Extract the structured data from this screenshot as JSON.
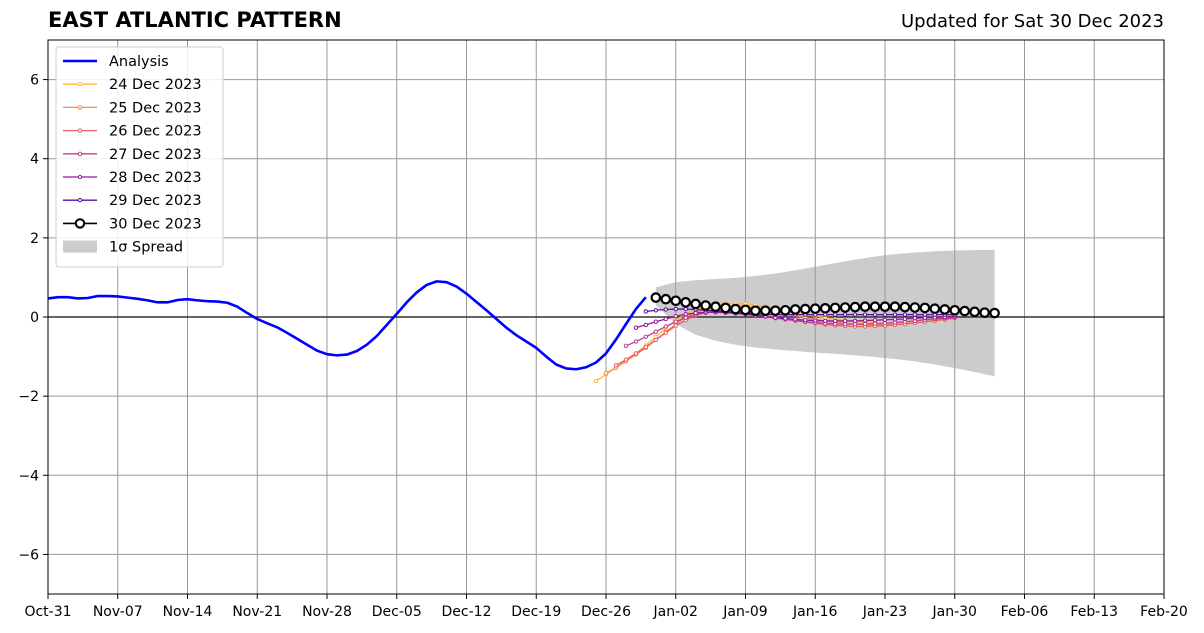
{
  "header": {
    "title": "EAST ATLANTIC PATTERN",
    "updated": "Updated for Sat 30 Dec 2023"
  },
  "chart_data": {
    "type": "line",
    "title": "EAST ATLANTIC PATTERN",
    "subtitle": "Updated for Sat 30 Dec 2023",
    "xlabel": "",
    "ylabel": "",
    "x_is_days_since": "2023-10-31",
    "xlim": [
      0,
      112
    ],
    "ylim": [
      -7,
      7
    ],
    "x_ticks": [
      {
        "day": 0,
        "label": "Oct-31"
      },
      {
        "day": 7,
        "label": "Nov-07"
      },
      {
        "day": 14,
        "label": "Nov-14"
      },
      {
        "day": 21,
        "label": "Nov-21"
      },
      {
        "day": 28,
        "label": "Nov-28"
      },
      {
        "day": 35,
        "label": "Dec-05"
      },
      {
        "day": 42,
        "label": "Dec-12"
      },
      {
        "day": 49,
        "label": "Dec-19"
      },
      {
        "day": 56,
        "label": "Dec-26"
      },
      {
        "day": 63,
        "label": "Jan-02"
      },
      {
        "day": 70,
        "label": "Jan-09"
      },
      {
        "day": 77,
        "label": "Jan-16"
      },
      {
        "day": 84,
        "label": "Jan-23"
      },
      {
        "day": 91,
        "label": "Jan-30"
      },
      {
        "day": 98,
        "label": "Feb-06"
      },
      {
        "day": 105,
        "label": "Feb-13"
      },
      {
        "day": 112,
        "label": "Feb-20"
      }
    ],
    "y_ticks": [
      {
        "value": -6,
        "label": "−6"
      },
      {
        "value": -4,
        "label": "−4"
      },
      {
        "value": -2,
        "label": "−2"
      },
      {
        "value": 0,
        "label": "0"
      },
      {
        "value": 2,
        "label": "2"
      },
      {
        "value": 4,
        "label": "4"
      },
      {
        "value": 6,
        "label": "6"
      }
    ],
    "grid": true,
    "zero_line": true,
    "legend": {
      "placement": "top-left",
      "entries": [
        "Analysis",
        "24 Dec 2023",
        "25 Dec 2023",
        "26 Dec 2023",
        "27 Dec 2023",
        "28 Dec 2023",
        "29 Dec 2023",
        "30 Dec 2023",
        "1σ Spread"
      ]
    },
    "analysis": {
      "name": "Analysis",
      "color": "#0000ff",
      "x": [
        0,
        1,
        2,
        3,
        4,
        5,
        6,
        7,
        8,
        9,
        10,
        11,
        12,
        13,
        14,
        15,
        16,
        17,
        18,
        19,
        20,
        21,
        22,
        23,
        24,
        25,
        26,
        27,
        28,
        29,
        30,
        31,
        32,
        33,
        34,
        35,
        36,
        37,
        38,
        39,
        40,
        41,
        42,
        43,
        44,
        45,
        46,
        47,
        48,
        49,
        50,
        51,
        52,
        53,
        54,
        55,
        56,
        57,
        58,
        59,
        60
      ],
      "y": [
        0.47,
        0.5,
        0.5,
        0.47,
        0.48,
        0.53,
        0.53,
        0.52,
        0.49,
        0.46,
        0.42,
        0.37,
        0.37,
        0.43,
        0.45,
        0.42,
        0.4,
        0.39,
        0.36,
        0.26,
        0.1,
        -0.05,
        -0.16,
        -0.26,
        -0.4,
        -0.55,
        -0.7,
        -0.85,
        -0.94,
        -0.97,
        -0.95,
        -0.86,
        -0.7,
        -0.48,
        -0.2,
        0.08,
        0.37,
        0.62,
        0.81,
        0.9,
        0.88,
        0.77,
        0.59,
        0.38,
        0.17,
        -0.05,
        -0.27,
        -0.46,
        -0.62,
        -0.78,
        -1.0,
        -1.2,
        -1.3,
        -1.32,
        -1.27,
        -1.15,
        -0.92,
        -0.57,
        -0.18,
        0.2,
        0.5
      ]
    },
    "forecasts": [
      {
        "name": "24 Dec 2023",
        "color": "#ffb53d",
        "start": 55,
        "y": [
          -1.62,
          -1.45,
          -1.28,
          -1.1,
          -0.92,
          -0.72,
          -0.5,
          -0.28,
          -0.08,
          0.08,
          0.18,
          0.25,
          0.3,
          0.33,
          0.34,
          0.33,
          0.3,
          0.26,
          0.22,
          0.17,
          0.12,
          0.07,
          0.03,
          -0.02,
          -0.06,
          -0.09,
          -0.12,
          -0.14,
          -0.15,
          -0.16,
          -0.16,
          -0.15,
          -0.14,
          -0.12,
          -0.1,
          -0.07,
          -0.04
        ]
      },
      {
        "name": "25 Dec 2023",
        "color": "#f58c43",
        "start": 56,
        "y": [
          -1.42,
          -1.28,
          -1.12,
          -0.95,
          -0.78,
          -0.58,
          -0.38,
          -0.18,
          0.0,
          0.12,
          0.2,
          0.25,
          0.28,
          0.28,
          0.26,
          0.22,
          0.18,
          0.13,
          0.08,
          0.03,
          -0.02,
          -0.06,
          -0.1,
          -0.13,
          -0.16,
          -0.18,
          -0.19,
          -0.2,
          -0.2,
          -0.19,
          -0.17,
          -0.15,
          -0.12,
          -0.09,
          -0.06,
          -0.03
        ]
      },
      {
        "name": "26 Dec 2023",
        "color": "#e75f69",
        "start": 57,
        "y": [
          -1.22,
          -1.08,
          -0.92,
          -0.76,
          -0.58,
          -0.4,
          -0.22,
          -0.08,
          0.04,
          0.11,
          0.15,
          0.16,
          0.15,
          0.12,
          0.08,
          0.04,
          0.0,
          -0.05,
          -0.09,
          -0.13,
          -0.16,
          -0.19,
          -0.21,
          -0.23,
          -0.24,
          -0.24,
          -0.23,
          -0.22,
          -0.2,
          -0.18,
          -0.15,
          -0.12,
          -0.09,
          -0.06,
          -0.03
        ]
      },
      {
        "name": "27 Dec 2023",
        "color": "#c2408d",
        "start": 58,
        "y": [
          -0.73,
          -0.62,
          -0.5,
          -0.37,
          -0.24,
          -0.12,
          -0.02,
          0.06,
          0.11,
          0.13,
          0.13,
          0.11,
          0.08,
          0.05,
          0.01,
          -0.03,
          -0.06,
          -0.09,
          -0.12,
          -0.14,
          -0.16,
          -0.17,
          -0.18,
          -0.18,
          -0.18,
          -0.17,
          -0.16,
          -0.14,
          -0.12,
          -0.1,
          -0.07,
          -0.05,
          -0.03,
          -0.01
        ]
      },
      {
        "name": "28 Dec 2023",
        "color": "#94169e",
        "start": 59,
        "y": [
          -0.27,
          -0.2,
          -0.12,
          -0.05,
          0.02,
          0.07,
          0.1,
          0.12,
          0.12,
          0.11,
          0.09,
          0.07,
          0.04,
          0.01,
          -0.02,
          -0.04,
          -0.06,
          -0.08,
          -0.09,
          -0.1,
          -0.1,
          -0.1,
          -0.1,
          -0.09,
          -0.08,
          -0.07,
          -0.06,
          -0.05,
          -0.03,
          -0.02,
          -0.01,
          0.0,
          0.01
        ]
      },
      {
        "name": "29 Dec 2023",
        "color": "#5a0ea0",
        "start": 60,
        "y": [
          0.14,
          0.17,
          0.19,
          0.2,
          0.2,
          0.19,
          0.17,
          0.15,
          0.13,
          0.11,
          0.09,
          0.08,
          0.07,
          0.06,
          0.06,
          0.06,
          0.06,
          0.06,
          0.06,
          0.06,
          0.06,
          0.06,
          0.06,
          0.06,
          0.06,
          0.06,
          0.06,
          0.06,
          0.06,
          0.06,
          0.06,
          0.05
        ]
      },
      {
        "name": "30 Dec 2023",
        "color": "#000000",
        "start": 61,
        "y": [
          0.49,
          0.45,
          0.41,
          0.37,
          0.33,
          0.29,
          0.26,
          0.23,
          0.2,
          0.18,
          0.16,
          0.16,
          0.16,
          0.17,
          0.19,
          0.2,
          0.21,
          0.22,
          0.23,
          0.24,
          0.25,
          0.26,
          0.26,
          0.26,
          0.26,
          0.25,
          0.24,
          0.23,
          0.21,
          0.19,
          0.17,
          0.15,
          0.13,
          0.11,
          0.1
        ]
      }
    ],
    "spread": {
      "name": "1σ Spread",
      "color": "#cccccc",
      "x": [
        61,
        63,
        65,
        67,
        69,
        71,
        73,
        75,
        77,
        79,
        81,
        83,
        85,
        87,
        89,
        91,
        93,
        95
      ],
      "upper": [
        0.75,
        0.88,
        0.93,
        0.96,
        0.99,
        1.04,
        1.1,
        1.18,
        1.27,
        1.36,
        1.45,
        1.53,
        1.59,
        1.63,
        1.66,
        1.68,
        1.69,
        1.7
      ],
      "lower": [
        0.3,
        -0.18,
        -0.45,
        -0.6,
        -0.7,
        -0.77,
        -0.82,
        -0.86,
        -0.9,
        -0.93,
        -0.97,
        -1.01,
        -1.06,
        -1.12,
        -1.2,
        -1.29,
        -1.39,
        -1.5
      ]
    }
  }
}
